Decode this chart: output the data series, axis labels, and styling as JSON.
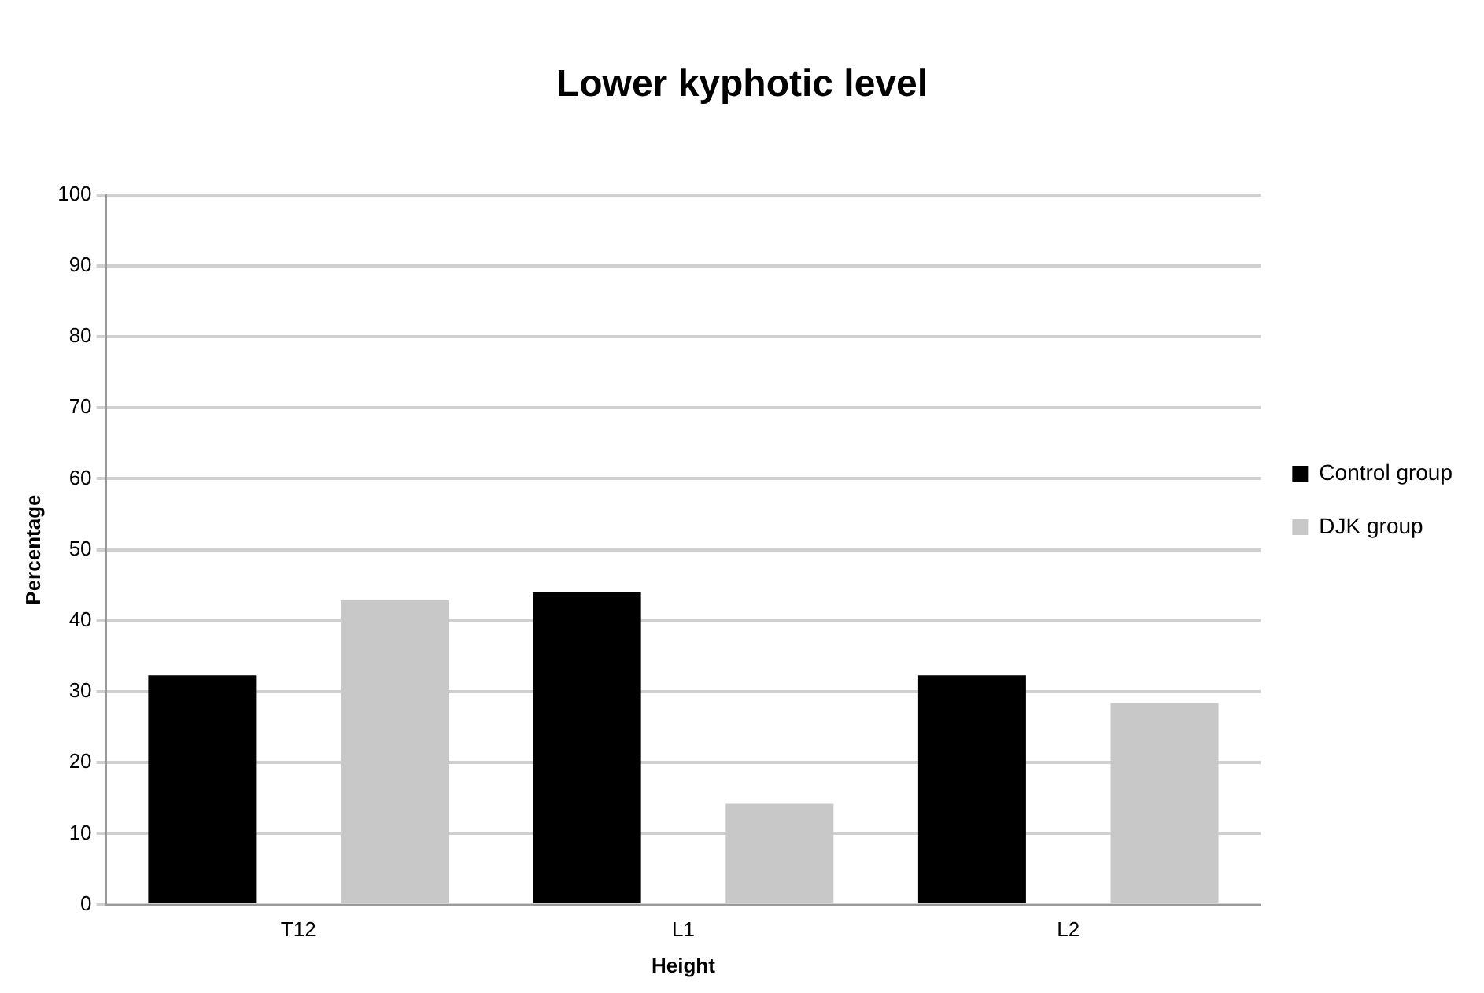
{
  "chart_data": {
    "type": "bar",
    "title": "Lower kyphotic level",
    "xlabel": "Height",
    "ylabel": "Percentage",
    "categories": [
      "T12",
      "L1",
      "L2"
    ],
    "series": [
      {
        "name": "Control group",
        "color": "#000000",
        "values": [
          32.3,
          44,
          32.3
        ]
      },
      {
        "name": "DJK group",
        "color": "#c8c8c8",
        "values": [
          42.9,
          14.2,
          28.4
        ]
      }
    ],
    "ylim": [
      0,
      100
    ],
    "yticks": [
      0,
      10,
      20,
      30,
      40,
      50,
      60,
      70,
      80,
      90,
      100
    ],
    "grid": "y",
    "legend": "right"
  }
}
